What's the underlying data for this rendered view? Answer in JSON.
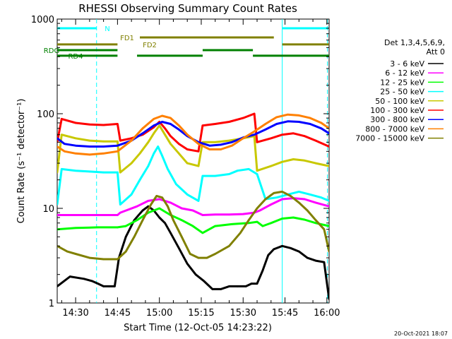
{
  "chart_data": {
    "type": "line",
    "title": "RHESSI Observing Summary Count Rates",
    "xlabel": "Start Time (12-Oct-05 14:23:22)",
    "ylabel": "Count Rate (s⁻¹ detector⁻¹)",
    "yscale": "log",
    "ylim": [
      1,
      1000
    ],
    "xlim_minutes": [
      23.4,
      120.8
    ],
    "x_tick_labels": [
      "14:30",
      "14:45",
      "15:00",
      "15:15",
      "15:30",
      "15:45",
      "16:00"
    ],
    "x_tick_minutes": [
      30,
      45,
      60,
      75,
      90,
      105,
      120
    ],
    "y_tick_labels": [
      "1",
      "10",
      "100",
      "1000"
    ],
    "y_tick_values": [
      1,
      10,
      100,
      1000
    ],
    "legend_header": [
      "Det 1,3,4,5,6,9,",
      "Att 0"
    ],
    "legend_position": "right",
    "series": [
      {
        "name": "3 - 6 keV",
        "color": "#000000",
        "x": [
          23.4,
          28,
          33,
          36,
          38,
          40,
          42,
          44,
          45.5,
          48,
          51,
          54,
          56,
          58,
          60,
          62,
          64,
          67,
          70,
          73,
          76,
          79,
          82,
          85,
          88,
          91,
          93,
          95,
          97,
          99,
          101,
          104,
          107,
          110,
          113,
          116,
          119,
          120.8
        ],
        "values": [
          1.5,
          1.9,
          1.8,
          1.7,
          1.6,
          1.5,
          1.5,
          1.5,
          3.0,
          5.0,
          7.5,
          9.5,
          10.5,
          9.5,
          8.0,
          7.0,
          5.5,
          3.8,
          2.6,
          2.0,
          1.7,
          1.4,
          1.4,
          1.5,
          1.5,
          1.5,
          1.6,
          1.6,
          2.2,
          3.2,
          3.7,
          4.0,
          3.8,
          3.5,
          3.0,
          2.8,
          2.7,
          1.1
        ]
      },
      {
        "name": "6 - 12 keV",
        "color": "#ff00ff",
        "x": [
          23.4,
          30,
          38,
          45,
          46,
          52,
          56,
          60,
          64,
          68,
          72,
          75.5,
          80,
          85,
          90,
          94,
          96,
          100,
          104,
          108,
          112,
          116,
          120.8
        ],
        "values": [
          8.5,
          8.5,
          8.5,
          8.5,
          9.0,
          10.5,
          12.0,
          12.5,
          11.5,
          10.0,
          9.5,
          8.5,
          8.6,
          8.6,
          8.7,
          9.0,
          9.5,
          11.0,
          12.5,
          12.8,
          12.5,
          11.5,
          10.5
        ]
      },
      {
        "name": "12 - 25 keV",
        "color": "#00ff00",
        "x": [
          23.4,
          30,
          38,
          45,
          48,
          52,
          56,
          60,
          64,
          68,
          72,
          75.5,
          80,
          86,
          92,
          95,
          97,
          100,
          104,
          108,
          112,
          116,
          120.8
        ],
        "values": [
          6.0,
          6.2,
          6.3,
          6.3,
          6.5,
          7.5,
          9.0,
          10.0,
          8.5,
          7.5,
          6.5,
          5.5,
          6.5,
          6.8,
          7.0,
          7.2,
          6.5,
          7.0,
          7.8,
          8.0,
          7.6,
          7.0,
          6.5
        ]
      },
      {
        "name": "25 - 50 keV",
        "color": "#00ffff",
        "x": [
          23.4,
          25,
          30,
          35,
          40,
          45,
          46,
          50,
          53,
          56,
          58,
          59.5,
          61,
          63,
          66,
          70,
          74,
          75.5,
          80,
          85,
          88,
          92,
          95,
          98,
          102,
          106,
          110,
          114,
          118,
          120.8
        ],
        "values": [
          11.0,
          26,
          25,
          24.5,
          24,
          24,
          11.0,
          14,
          20,
          28,
          38,
          45,
          36,
          26,
          18,
          14,
          12,
          22,
          22,
          23,
          25,
          26,
          23,
          12.5,
          13,
          14,
          15,
          14,
          13,
          12
        ]
      },
      {
        "name": "50 - 100 keV",
        "color": "#c8c800",
        "x": [
          23.4,
          25,
          30,
          35,
          40,
          45,
          46,
          50,
          53,
          56,
          58,
          60,
          62,
          64,
          67,
          70,
          74,
          75.5,
          80,
          85,
          90,
          94,
          95,
          100,
          104,
          108,
          112,
          116,
          120.8
        ],
        "values": [
          24,
          60,
          55,
          52,
          51,
          51,
          24,
          30,
          38,
          50,
          62,
          75,
          60,
          48,
          38,
          30,
          28,
          50,
          50,
          52,
          55,
          58,
          25,
          28,
          31,
          33,
          32,
          30,
          28
        ]
      },
      {
        "name": "100 - 300 keV",
        "color": "#ff0000",
        "x": [
          23.4,
          25,
          30,
          35,
          40,
          45,
          46,
          50,
          54,
          58,
          60,
          62,
          64,
          67,
          70,
          74,
          75.5,
          80,
          85,
          90,
          94,
          95,
          100,
          104,
          108,
          112,
          116,
          120.8
        ],
        "values": [
          50,
          88,
          80,
          77,
          76,
          78,
          52,
          55,
          60,
          72,
          82,
          70,
          58,
          48,
          42,
          40,
          75,
          78,
          82,
          90,
          100,
          50,
          55,
          60,
          62,
          58,
          52,
          45
        ]
      },
      {
        "name": "300 - 800 keV",
        "color": "#0000ff",
        "x": [
          23.4,
          26,
          30,
          35,
          40,
          45,
          50,
          54,
          58,
          61,
          64,
          67,
          70,
          74,
          78,
          82,
          86,
          90,
          94,
          98,
          102,
          106,
          110,
          114,
          118,
          120.8
        ],
        "values": [
          55,
          48,
          46,
          45,
          45,
          46,
          52,
          62,
          75,
          82,
          78,
          68,
          58,
          50,
          46,
          47,
          50,
          56,
          60,
          68,
          78,
          83,
          82,
          78,
          70,
          62
        ]
      },
      {
        "name": "800 - 7000 keV",
        "color": "#ff8000",
        "x": [
          23.4,
          26,
          30,
          35,
          40,
          45,
          50,
          54,
          58,
          61,
          64,
          67,
          70,
          74,
          78,
          82,
          86,
          90,
          94,
          98,
          102,
          106,
          110,
          114,
          118,
          120.8
        ],
        "values": [
          45,
          40,
          38,
          37,
          38,
          40,
          52,
          70,
          88,
          95,
          90,
          75,
          60,
          48,
          42,
          42,
          46,
          55,
          65,
          78,
          92,
          98,
          96,
          90,
          80,
          70
        ]
      },
      {
        "name": "7000 - 15000 keV",
        "color": "#808000",
        "x": [
          23.4,
          27,
          30,
          35,
          40,
          45,
          48,
          51,
          54,
          57,
          59,
          61,
          63,
          65,
          68,
          71,
          74,
          77,
          80,
          85,
          89,
          92,
          95,
          98,
          101,
          104,
          107,
          110,
          113,
          116,
          119,
          120.8
        ],
        "values": [
          4.0,
          3.5,
          3.3,
          3.0,
          2.9,
          2.9,
          3.5,
          5.0,
          7.5,
          11.0,
          13.5,
          13.0,
          10.5,
          7.5,
          5.0,
          3.3,
          3.0,
          3.0,
          3.3,
          4.0,
          5.5,
          7.5,
          10.0,
          12.5,
          14.5,
          15.0,
          13.5,
          11.5,
          9.5,
          7.5,
          6.0,
          3.5
        ]
      }
    ],
    "annotations": [
      {
        "label": "N",
        "color": "#00ffff",
        "value": 800,
        "segments": [
          [
            23.4,
            37.5
          ],
          [
            104,
            120.5
          ]
        ]
      },
      {
        "label": "FD1",
        "color": "#808000",
        "value": 640,
        "segments": [
          [
            53,
            101
          ]
        ]
      },
      {
        "label": "FD2",
        "color": "#808000",
        "value": 540,
        "segments": [
          [
            23.4,
            45
          ],
          [
            104,
            120.8
          ]
        ]
      },
      {
        "label": "RDG",
        "color": "#008000",
        "value": 470,
        "segments": [
          [
            23.4,
            45
          ],
          [
            75.5,
            93.5
          ]
        ]
      },
      {
        "label": "RD4",
        "color": "#008000",
        "value": 410,
        "segments": [
          [
            23.4,
            45
          ],
          [
            52,
            75.5
          ],
          [
            93.5,
            120.8
          ]
        ]
      }
    ],
    "vlines": [
      {
        "x": 37.5,
        "color": "#00ffff",
        "style": "dashed"
      },
      {
        "x": 104,
        "color": "#00ffff",
        "style": "solid"
      },
      {
        "x": 120.2,
        "color": "#00ffff",
        "style": "dashed"
      }
    ],
    "grid": false
  },
  "footer": {
    "timestamp": "20-Oct-2021 18:07"
  }
}
